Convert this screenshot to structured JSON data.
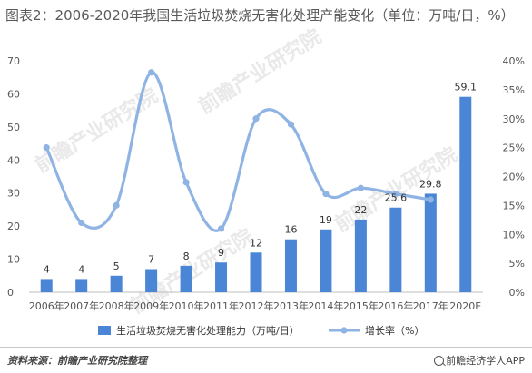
{
  "title": "图表2：2006-2020年我国生活垃圾焚烧无害化处理产能变化（单位：万吨/日，%）",
  "watermark_text": "前瞻产业研究院",
  "chart_data": {
    "type": "bar",
    "categories": [
      "2006年",
      "2007年",
      "2008年",
      "2009年",
      "2010年",
      "2011年",
      "2012年",
      "2013年",
      "2014年",
      "2015年",
      "2016年",
      "2017年",
      "2020E"
    ],
    "series": [
      {
        "name": "生活垃圾焚烧无害化处理能力（万吨/日）",
        "type": "bar",
        "axis": "left",
        "color": "#4a85d6",
        "values": [
          4,
          4,
          5,
          7,
          8,
          9,
          12,
          16,
          19,
          22,
          25.6,
          29.8,
          59.1
        ],
        "labels": [
          "4",
          "4",
          "5",
          "7",
          "8",
          "9",
          "12",
          "16",
          "19",
          "22",
          "25.6",
          "29.8",
          "59.1"
        ]
      },
      {
        "name": "增长率（%）",
        "type": "line",
        "axis": "right",
        "color": "#8fb4e3",
        "smooth": true,
        "values": [
          25,
          12,
          15,
          38,
          19,
          11,
          30,
          29,
          17,
          18,
          17,
          16,
          null
        ]
      }
    ],
    "y_left": {
      "min": 0,
      "max": 70,
      "ticks": [
        "0",
        "10",
        "20",
        "30",
        "40",
        "50",
        "60",
        "70"
      ]
    },
    "y_right": {
      "min": 0,
      "max": 40,
      "ticks": [
        "0%",
        "5%",
        "10%",
        "15%",
        "20%",
        "25%",
        "30%",
        "35%",
        "40%"
      ]
    },
    "grid": false,
    "legend_position": "bottom"
  },
  "footer": {
    "source": "资料来源：前瞻产业研究院整理",
    "brand": "前瞻经济学人APP"
  },
  "colors": {
    "bar": "#4a85d6",
    "line": "#8fb4e3",
    "axis": "#bfbfbf",
    "text": "#555555"
  }
}
